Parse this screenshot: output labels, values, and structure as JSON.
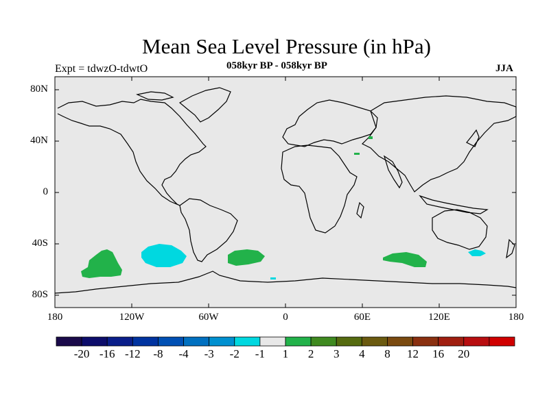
{
  "title": "Mean Sea Level Pressure (in hPa)",
  "expt_label": "Expt = tdwzO-tdwtO",
  "period_label": "058kyr BP - 058kyr BP",
  "season_label": "JJA",
  "lat_ticks": [
    "80N",
    "40N",
    "0",
    "40S",
    "80S"
  ],
  "lon_ticks": [
    "180",
    "120W",
    "60W",
    "0",
    "60E",
    "120E",
    "180"
  ],
  "colorbar": {
    "colors": [
      "#1a0a4a",
      "#0d0d6b",
      "#0a1e8a",
      "#0033a0",
      "#0050b4",
      "#0070c0",
      "#0090d0",
      "#00d8e0",
      "#e8e8e8",
      "#22b24a",
      "#3f8a20",
      "#556b10",
      "#6b5a10",
      "#7a4a10",
      "#8a3010",
      "#a01e10",
      "#b80e10",
      "#d00000"
    ],
    "labels": [
      "-20",
      "-16",
      "-12",
      "-8",
      "-4",
      "-3",
      "-2",
      "-1",
      "1",
      "2",
      "3",
      "4",
      "8",
      "12",
      "16",
      "20"
    ]
  },
  "colors": {
    "ocean_background": "#e8e8e8",
    "positive_anomaly": "#22b24a",
    "negative_anomaly": "#00d8e0"
  }
}
